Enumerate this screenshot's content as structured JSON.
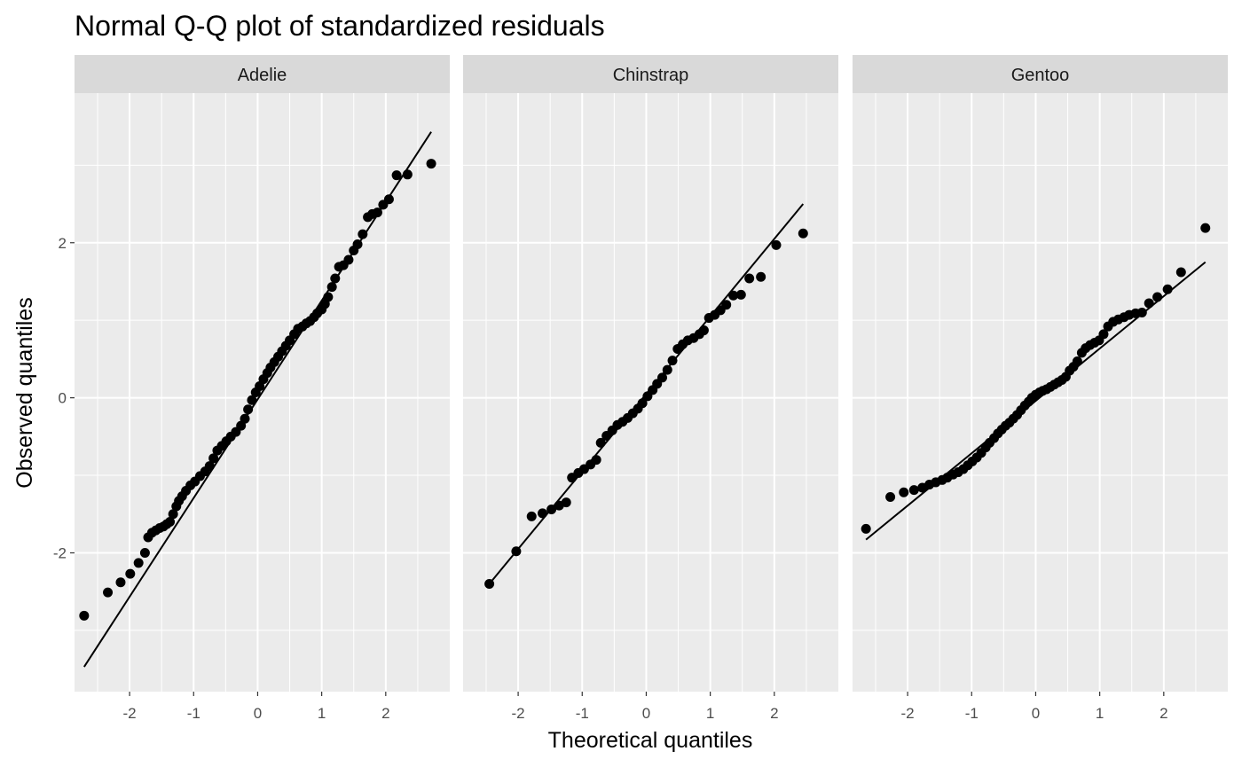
{
  "chart_data": {
    "type": "scatter",
    "title": "Normal Q-Q plot of standardized residuals",
    "xlabel": "Theoretical quantiles",
    "ylabel": "Observed quantiles",
    "xlim": [
      -2.86,
      3.0
    ],
    "ylim": [
      -3.79,
      3.93
    ],
    "x_ticks": [
      -2,
      -1,
      0,
      1,
      2
    ],
    "y_ticks": [
      -2,
      0,
      2
    ],
    "grid": true,
    "facets": [
      {
        "name": "Adelie",
        "reference_line": {
          "x": [
            -2.71,
            2.71
          ],
          "y": [
            -3.47,
            3.43
          ]
        },
        "points": [
          [
            -2.71,
            -2.81
          ],
          [
            -2.34,
            -2.51
          ],
          [
            -2.14,
            -2.38
          ],
          [
            -1.99,
            -2.27
          ],
          [
            -1.86,
            -2.13
          ],
          [
            -1.76,
            -2.0
          ],
          [
            -1.71,
            -1.8
          ],
          [
            -1.65,
            -1.74
          ],
          [
            -1.59,
            -1.71
          ],
          [
            -1.53,
            -1.68
          ],
          [
            -1.47,
            -1.66
          ],
          [
            -1.42,
            -1.63
          ],
          [
            -1.37,
            -1.6
          ],
          [
            -1.32,
            -1.5
          ],
          [
            -1.27,
            -1.4
          ],
          [
            -1.23,
            -1.33
          ],
          [
            -1.18,
            -1.27
          ],
          [
            -1.12,
            -1.2
          ],
          [
            -1.05,
            -1.13
          ],
          [
            -0.98,
            -1.08
          ],
          [
            -0.9,
            -1.01
          ],
          [
            -0.82,
            -0.95
          ],
          [
            -0.75,
            -0.88
          ],
          [
            -0.69,
            -0.78
          ],
          [
            -0.63,
            -0.68
          ],
          [
            -0.56,
            -0.62
          ],
          [
            -0.49,
            -0.56
          ],
          [
            -0.42,
            -0.5
          ],
          [
            -0.34,
            -0.44
          ],
          [
            -0.26,
            -0.36
          ],
          [
            -0.2,
            -0.27
          ],
          [
            -0.15,
            -0.15
          ],
          [
            -0.09,
            -0.03
          ],
          [
            -0.03,
            0.07
          ],
          [
            0.03,
            0.15
          ],
          [
            0.09,
            0.24
          ],
          [
            0.15,
            0.32
          ],
          [
            0.2,
            0.39
          ],
          [
            0.26,
            0.46
          ],
          [
            0.32,
            0.53
          ],
          [
            0.38,
            0.6
          ],
          [
            0.44,
            0.67
          ],
          [
            0.5,
            0.74
          ],
          [
            0.57,
            0.82
          ],
          [
            0.63,
            0.89
          ],
          [
            0.7,
            0.92
          ],
          [
            0.76,
            0.96
          ],
          [
            0.82,
            0.99
          ],
          [
            0.88,
            1.04
          ],
          [
            0.93,
            1.09
          ],
          [
            1.0,
            1.14
          ],
          [
            1.05,
            1.21
          ],
          [
            1.1,
            1.3
          ],
          [
            1.16,
            1.43
          ],
          [
            1.21,
            1.54
          ],
          [
            1.27,
            1.69
          ],
          [
            1.34,
            1.71
          ],
          [
            1.42,
            1.78
          ],
          [
            1.5,
            1.9
          ],
          [
            1.56,
            1.98
          ],
          [
            1.64,
            2.11
          ],
          [
            1.72,
            2.33
          ],
          [
            1.79,
            2.37
          ],
          [
            1.87,
            2.39
          ],
          [
            1.96,
            2.49
          ],
          [
            2.05,
            2.56
          ],
          [
            2.17,
            2.87
          ],
          [
            2.34,
            2.88
          ],
          [
            2.71,
            3.02
          ]
        ]
      },
      {
        "name": "Chinstrap",
        "reference_line": {
          "x": [
            -2.45,
            2.45
          ],
          "y": [
            -2.4,
            2.5
          ]
        },
        "points": [
          [
            -2.45,
            -2.4
          ],
          [
            -2.03,
            -1.98
          ],
          [
            -1.79,
            -1.53
          ],
          [
            -1.62,
            -1.49
          ],
          [
            -1.48,
            -1.44
          ],
          [
            -1.36,
            -1.39
          ],
          [
            -1.25,
            -1.35
          ],
          [
            -1.16,
            -1.03
          ],
          [
            -1.06,
            -0.97
          ],
          [
            -0.97,
            -0.92
          ],
          [
            -0.87,
            -0.86
          ],
          [
            -0.78,
            -0.8
          ],
          [
            -0.71,
            -0.58
          ],
          [
            -0.62,
            -0.49
          ],
          [
            -0.53,
            -0.42
          ],
          [
            -0.45,
            -0.35
          ],
          [
            -0.37,
            -0.31
          ],
          [
            -0.29,
            -0.26
          ],
          [
            -0.21,
            -0.2
          ],
          [
            -0.13,
            -0.14
          ],
          [
            -0.06,
            -0.07
          ],
          [
            0.02,
            0.02
          ],
          [
            0.1,
            0.1
          ],
          [
            0.17,
            0.18
          ],
          [
            0.25,
            0.26
          ],
          [
            0.33,
            0.36
          ],
          [
            0.41,
            0.48
          ],
          [
            0.49,
            0.63
          ],
          [
            0.57,
            0.69
          ],
          [
            0.65,
            0.74
          ],
          [
            0.74,
            0.77
          ],
          [
            0.83,
            0.82
          ],
          [
            0.9,
            0.87
          ],
          [
            0.98,
            1.03
          ],
          [
            1.07,
            1.07
          ],
          [
            1.16,
            1.13
          ],
          [
            1.25,
            1.2
          ],
          [
            1.36,
            1.32
          ],
          [
            1.48,
            1.33
          ],
          [
            1.61,
            1.54
          ],
          [
            1.79,
            1.56
          ],
          [
            2.03,
            1.97
          ],
          [
            2.45,
            2.12
          ]
        ]
      },
      {
        "name": "Gentoo",
        "reference_line": {
          "x": [
            -2.65,
            2.65
          ],
          "y": [
            -1.83,
            1.75
          ]
        },
        "points": [
          [
            -2.65,
            -1.69
          ],
          [
            -2.27,
            -1.28
          ],
          [
            -2.06,
            -1.22
          ],
          [
            -1.9,
            -1.19
          ],
          [
            -1.77,
            -1.16
          ],
          [
            -1.66,
            -1.12
          ],
          [
            -1.56,
            -1.09
          ],
          [
            -1.46,
            -1.06
          ],
          [
            -1.38,
            -1.03
          ],
          [
            -1.29,
            -0.99
          ],
          [
            -1.21,
            -0.96
          ],
          [
            -1.13,
            -0.92
          ],
          [
            -1.06,
            -0.87
          ],
          [
            -0.99,
            -0.82
          ],
          [
            -0.92,
            -0.77
          ],
          [
            -0.85,
            -0.71
          ],
          [
            -0.78,
            -0.64
          ],
          [
            -0.72,
            -0.58
          ],
          [
            -0.65,
            -0.52
          ],
          [
            -0.59,
            -0.46
          ],
          [
            -0.53,
            -0.41
          ],
          [
            -0.47,
            -0.36
          ],
          [
            -0.41,
            -0.32
          ],
          [
            -0.35,
            -0.27
          ],
          [
            -0.29,
            -0.22
          ],
          [
            -0.23,
            -0.16
          ],
          [
            -0.17,
            -0.1
          ],
          [
            -0.11,
            -0.05
          ],
          [
            -0.06,
            0.0
          ],
          [
            0.0,
            0.04
          ],
          [
            0.06,
            0.07
          ],
          [
            0.11,
            0.09
          ],
          [
            0.17,
            0.11
          ],
          [
            0.23,
            0.14
          ],
          [
            0.29,
            0.17
          ],
          [
            0.35,
            0.2
          ],
          [
            0.41,
            0.23
          ],
          [
            0.47,
            0.27
          ],
          [
            0.53,
            0.35
          ],
          [
            0.59,
            0.4
          ],
          [
            0.65,
            0.47
          ],
          [
            0.72,
            0.58
          ],
          [
            0.78,
            0.64
          ],
          [
            0.85,
            0.68
          ],
          [
            0.92,
            0.71
          ],
          [
            0.99,
            0.74
          ],
          [
            1.06,
            0.82
          ],
          [
            1.13,
            0.92
          ],
          [
            1.21,
            0.98
          ],
          [
            1.29,
            1.01
          ],
          [
            1.38,
            1.04
          ],
          [
            1.46,
            1.07
          ],
          [
            1.56,
            1.09
          ],
          [
            1.66,
            1.1
          ],
          [
            1.77,
            1.22
          ],
          [
            1.9,
            1.3
          ],
          [
            2.06,
            1.4
          ],
          [
            2.27,
            1.62
          ],
          [
            2.65,
            2.19
          ]
        ]
      }
    ]
  }
}
